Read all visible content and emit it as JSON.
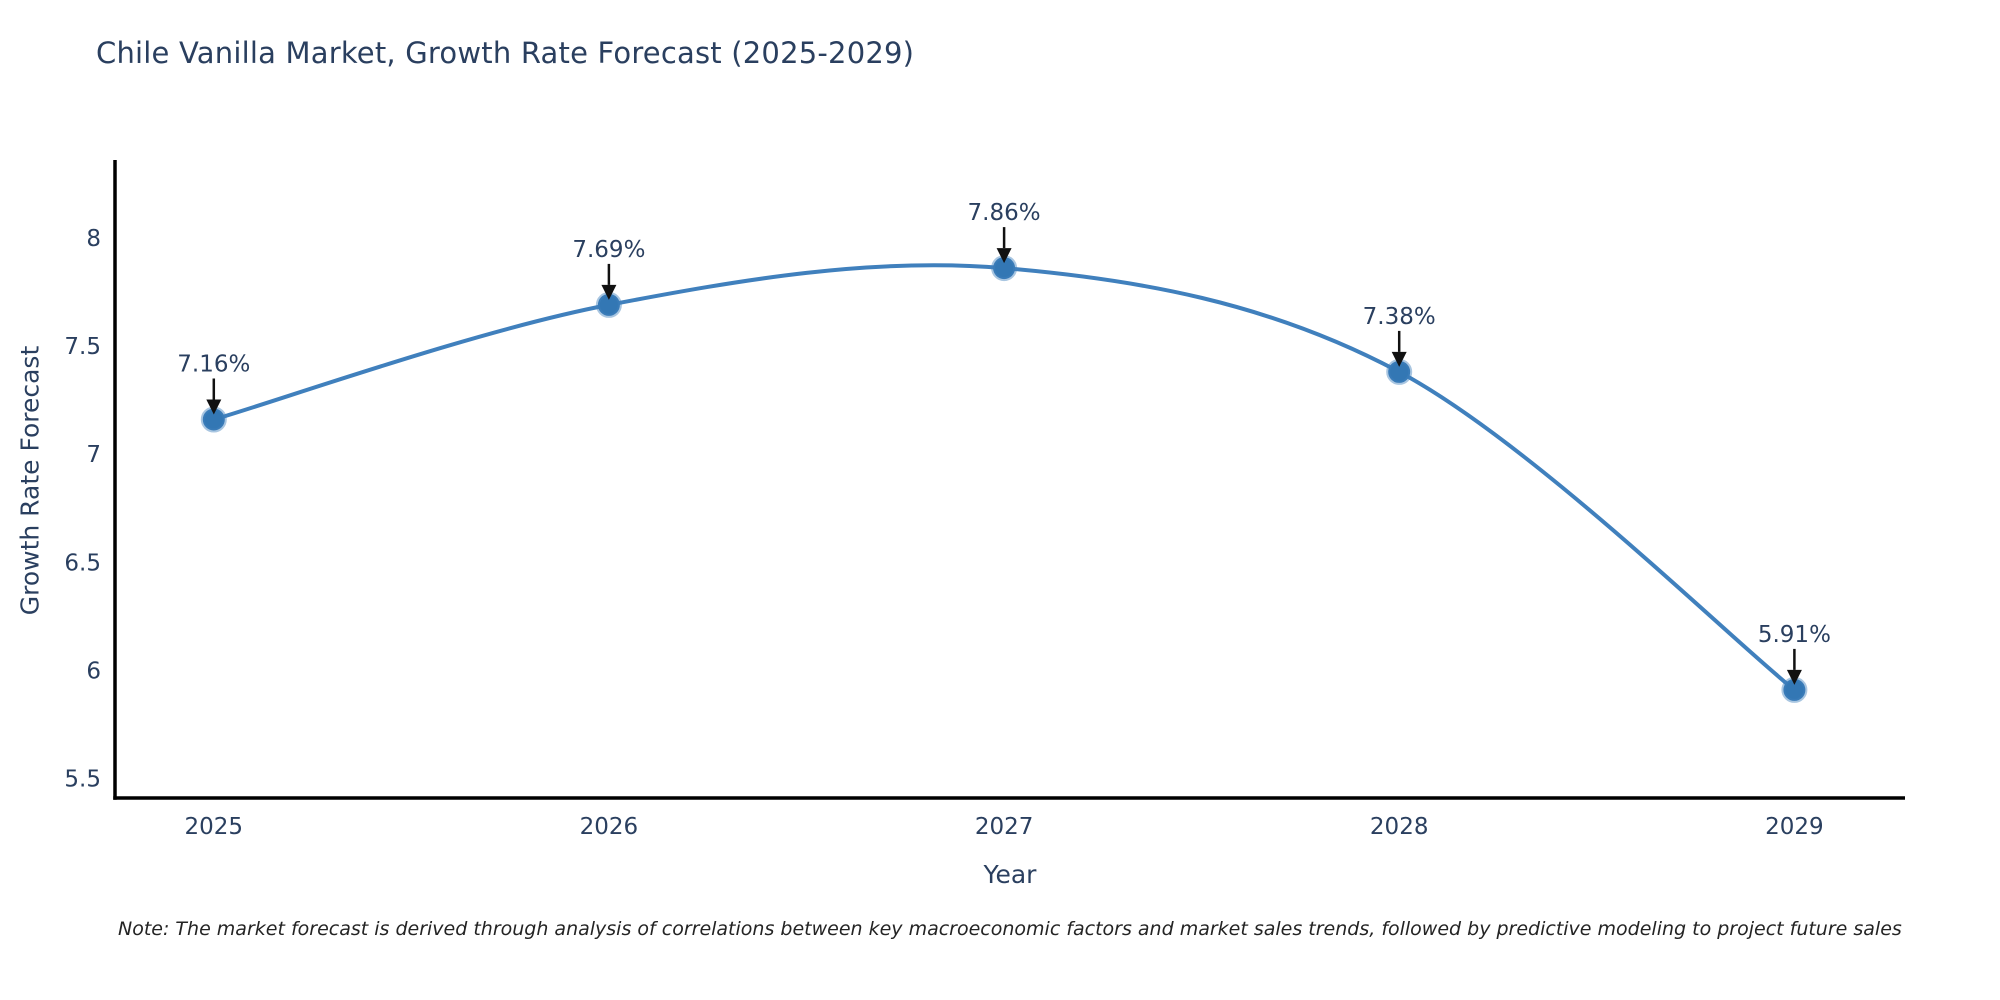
{
  "title": "Chile Vanilla Market, Growth Rate Forecast (2025-2029)",
  "note": "Note: The market forecast is derived through analysis of correlations between key macroeconomic factors and market sales trends, followed by predictive modeling to project future sales",
  "chart_data": {
    "type": "line",
    "line_shape": "spline",
    "x": [
      2025,
      2026,
      2027,
      2028,
      2029
    ],
    "xticks": [
      "2025",
      "2026",
      "2027",
      "2028",
      "2029"
    ],
    "series": [
      {
        "name": "Growth Rate Forecast",
        "values": [
          7.16,
          7.69,
          7.86,
          7.38,
          5.91
        ]
      }
    ],
    "point_labels": [
      "7.16%",
      "7.69%",
      "7.86%",
      "7.38%",
      "5.91%"
    ],
    "title": "Chile Vanilla Market, Growth Rate Forecast (2025-2029)",
    "xlabel": "Year",
    "ylabel": "Growth Rate Forecast",
    "yticks": [
      5.5,
      6,
      6.5,
      7,
      7.5,
      8
    ],
    "ylim": [
      5.41,
      8.36
    ],
    "xlim": [
      2024.75,
      2029.28
    ],
    "grid": false,
    "legend": "none",
    "colors": {
      "line": "#4080bd",
      "marker": "#3377b4",
      "marker_ring": "rgba(64,128,189,0.45)",
      "axis_line": "#000000",
      "tick_text": "#2a3f5f",
      "annotation_text": "#2a3f5f",
      "arrow": "#111111"
    }
  }
}
